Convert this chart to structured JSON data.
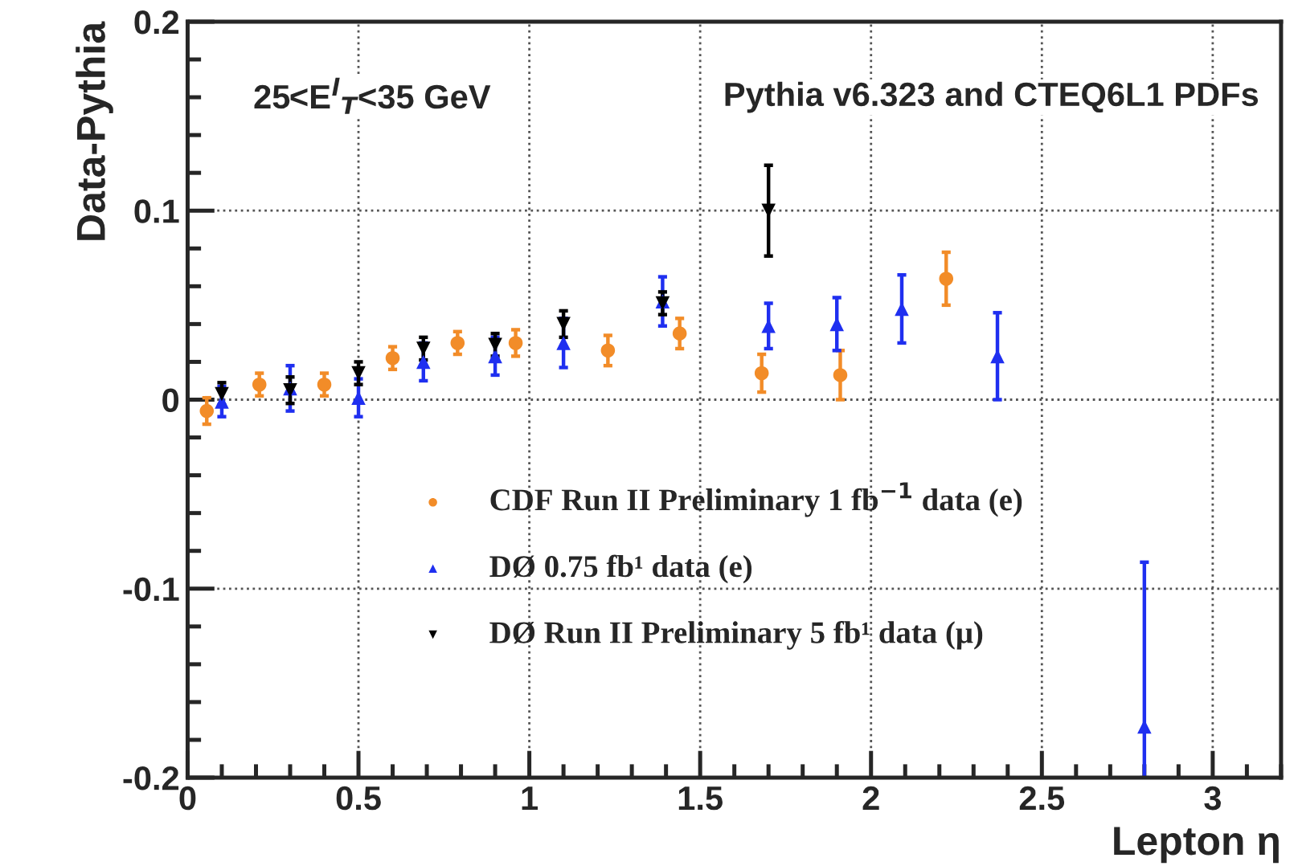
{
  "chart_data": {
    "type": "scatter",
    "xlabel": "Lepton η",
    "ylabel": "Data-Pythia",
    "xlim": [
      0,
      3.2
    ],
    "xticks": [
      0,
      0.5,
      1,
      1.5,
      2,
      2.5,
      3
    ],
    "ylim": [
      -0.2,
      0.2
    ],
    "yticks": [
      -0.2,
      -0.1,
      0,
      0.1,
      0.2
    ],
    "grid": true,
    "legend": "left",
    "annotations": [
      "25<E$^{l}$$_{T}$<35 GeV",
      "Pythia v6.323 and CTEQ6L1 PDFs"
    ],
    "series": [
      {
        "name": "CDF Run II Preliminary 1 fb$^{−1}$ data (e)",
        "color": "#f28c28",
        "marker": "circle",
        "x": [
          0.056,
          0.21,
          0.4,
          0.6,
          0.79,
          0.96,
          1.23,
          1.44,
          1.68,
          1.91,
          2.22
        ],
        "values": [
          -0.006,
          0.008,
          0.008,
          0.022,
          0.03,
          0.03,
          0.026,
          0.035,
          0.014,
          0.013,
          0.064
        ],
        "errors": [
          0.007,
          0.006,
          0.006,
          0.006,
          0.006,
          0.007,
          0.008,
          0.008,
          0.01,
          0.013,
          0.014
        ]
      },
      {
        "name": "DØ 0.75 fb¹ data (e)",
        "color": "#1f2ff0",
        "marker": "triangle",
        "x": [
          0.1,
          0.3,
          0.5,
          0.69,
          0.9,
          1.1,
          1.39,
          1.7,
          1.9,
          2.09,
          2.37,
          2.8
        ],
        "values": [
          -0.001,
          0.006,
          0.001,
          0.02,
          0.023,
          0.03,
          0.052,
          0.039,
          0.04,
          0.048,
          0.023,
          -0.173
        ],
        "errors": [
          0.008,
          0.012,
          0.01,
          0.01,
          0.01,
          0.013,
          0.013,
          0.012,
          0.014,
          0.018,
          0.023,
          [
            -0.2,
            -0.086
          ]
        ]
      },
      {
        "name": "DØ Run II Preliminary 5 fb¹ data (μ)",
        "color": "#000000",
        "marker": "triangle_down",
        "x": [
          0.1,
          0.3,
          0.5,
          0.69,
          0.9,
          1.1,
          1.39,
          1.7
        ],
        "values": [
          0.003,
          0.005,
          0.014,
          0.027,
          0.029,
          0.04,
          0.051,
          0.1
        ],
        "errors": [
          0.006,
          0.007,
          0.006,
          0.006,
          0.006,
          0.007,
          0.006,
          0.024
        ]
      }
    ]
  }
}
